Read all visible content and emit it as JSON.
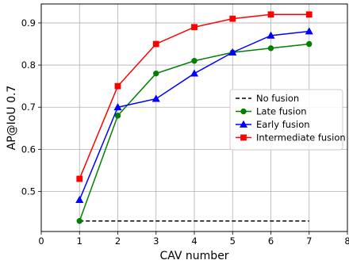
{
  "chart_data": {
    "type": "line",
    "title": "",
    "xlabel": "CAV number",
    "ylabel": "AP@IoU 0.7",
    "xlim": [
      0,
      8
    ],
    "ylim": [
      0.405,
      0.945
    ],
    "xticks": [
      0,
      1,
      2,
      3,
      4,
      5,
      6,
      7,
      8
    ],
    "xtick_labels": [
      "0",
      "1",
      "2",
      "3",
      "4",
      "5",
      "6",
      "7",
      "8"
    ],
    "yticks": [
      0.5,
      0.6,
      0.7,
      0.8,
      0.9
    ],
    "ytick_labels": [
      "0.5",
      "0.6",
      "0.7",
      "0.8",
      "0.9"
    ],
    "grid": true,
    "legend_position": "center-right",
    "x": [
      1,
      2,
      3,
      4,
      5,
      6,
      7
    ],
    "series": [
      {
        "name": "No fusion",
        "color": "#000000",
        "dash": "dashed",
        "marker": "none",
        "values": [
          0.43,
          0.43,
          0.43,
          0.43,
          0.43,
          0.43,
          0.43
        ]
      },
      {
        "name": "Late fusion",
        "color": "#008000",
        "dash": "solid",
        "marker": "circle",
        "values": [
          0.43,
          0.68,
          0.78,
          0.81,
          0.83,
          0.84,
          0.85
        ]
      },
      {
        "name": "Early fusion",
        "color": "#0000ff",
        "dash": "solid",
        "marker": "triangle",
        "values": [
          0.48,
          0.7,
          0.72,
          0.78,
          0.83,
          0.87,
          0.88
        ]
      },
      {
        "name": "Intermediate fusion",
        "color": "#ff0000",
        "dash": "solid",
        "marker": "square",
        "values": [
          0.53,
          0.75,
          0.85,
          0.89,
          0.91,
          0.92,
          0.92
        ]
      }
    ]
  }
}
